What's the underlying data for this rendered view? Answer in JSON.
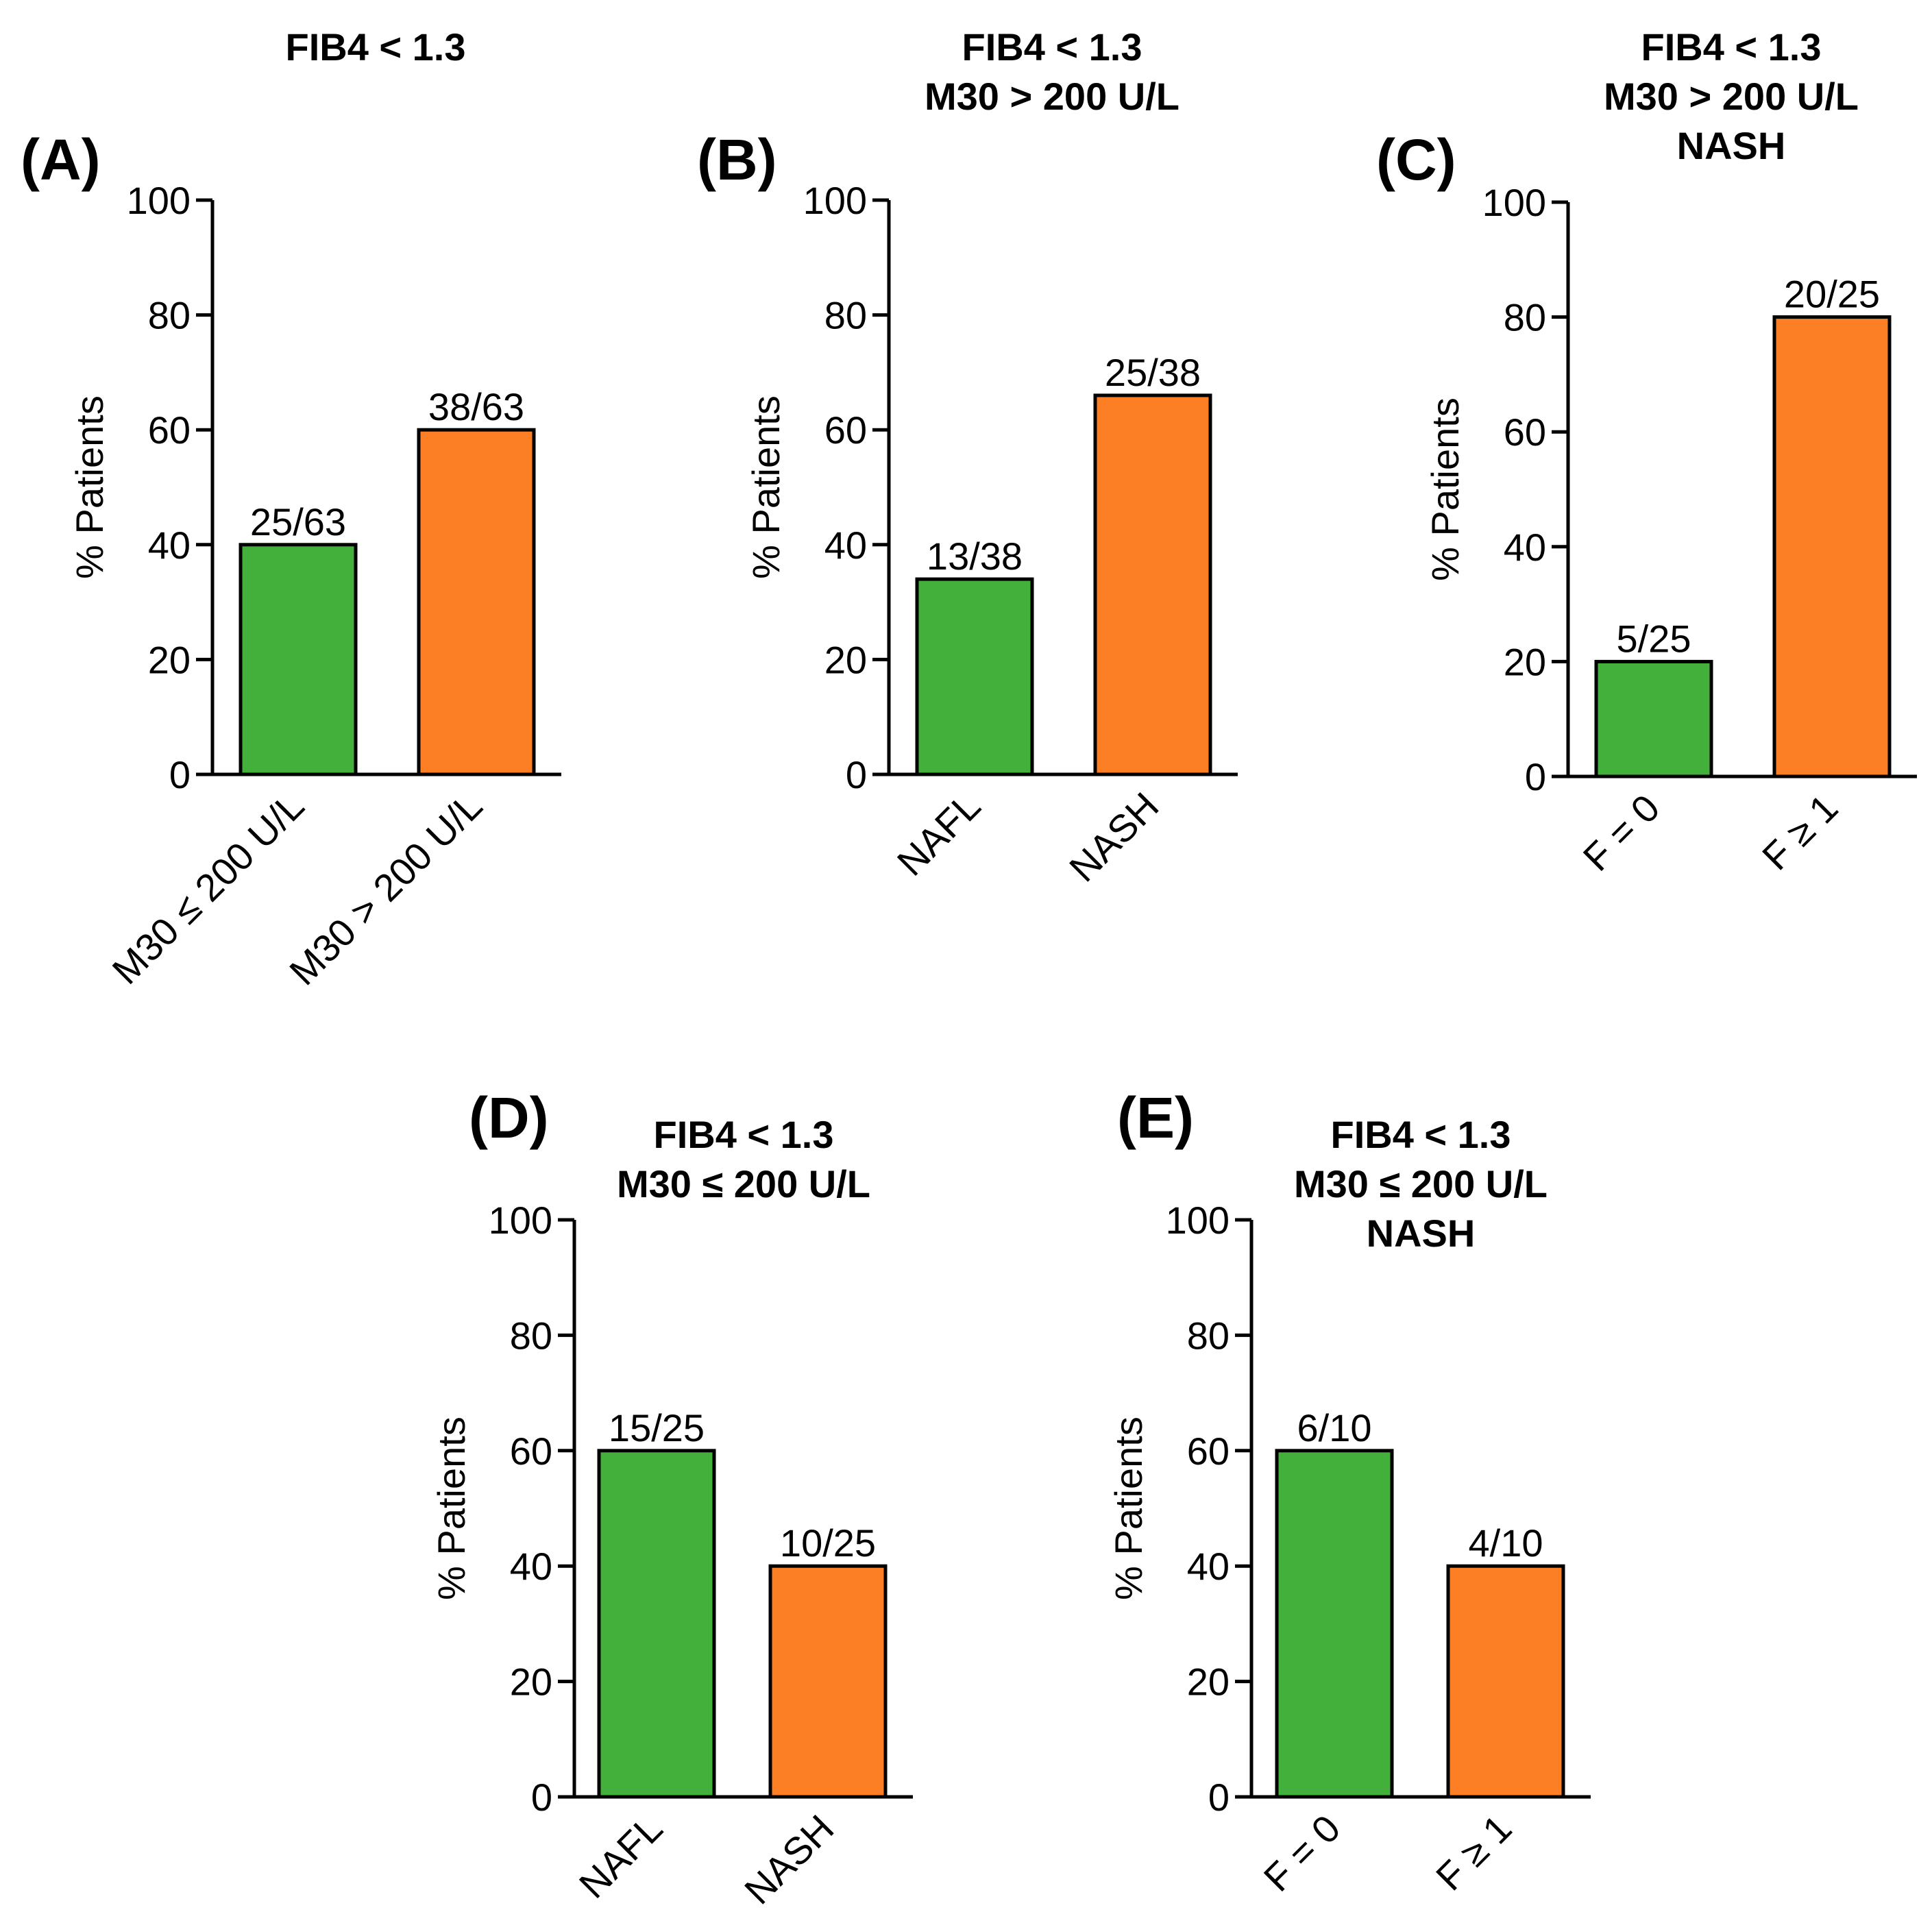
{
  "colors": {
    "green": "#44b03c",
    "orange": "#fd7f25"
  },
  "chart_data": [
    {
      "type": "bar",
      "panel": "(A)",
      "title": [
        "FIB4 < 1.3"
      ],
      "ylabel": "% Patients",
      "ylim": [
        0,
        100
      ],
      "yticks": [
        "0",
        "20",
        "40",
        "60",
        "80",
        "100"
      ],
      "categories": [
        "M30 ≤ 200 U/L",
        "M30 > 200 U/L"
      ],
      "values": [
        40,
        60
      ],
      "labels": [
        "25/63",
        "38/63"
      ],
      "colors": [
        "green",
        "orange"
      ]
    },
    {
      "type": "bar",
      "panel": "(B)",
      "title": [
        "FIB4 < 1.3",
        "M30 > 200 U/L"
      ],
      "ylabel": "% Patients",
      "ylim": [
        0,
        100
      ],
      "yticks": [
        "0",
        "20",
        "40",
        "60",
        "80",
        "100"
      ],
      "categories": [
        "NAFL",
        "NASH"
      ],
      "values": [
        34,
        66
      ],
      "labels": [
        "13/38",
        "25/38"
      ],
      "colors": [
        "green",
        "orange"
      ]
    },
    {
      "type": "bar",
      "panel": "(C)",
      "title": [
        "FIB4 < 1.3",
        "M30 > 200 U/L",
        "NASH"
      ],
      "ylabel": "% Patients",
      "ylim": [
        0,
        100
      ],
      "yticks": [
        "0",
        "20",
        "40",
        "60",
        "80",
        "100"
      ],
      "categories": [
        "F = 0",
        "F ≥ 1"
      ],
      "values": [
        20,
        80
      ],
      "labels": [
        "5/25",
        "20/25"
      ],
      "colors": [
        "green",
        "orange"
      ]
    },
    {
      "type": "bar",
      "panel": "(D)",
      "title": [
        "FIB4 < 1.3",
        "M30 ≤ 200 U/L"
      ],
      "ylabel": "% Patients",
      "ylim": [
        0,
        100
      ],
      "yticks": [
        "0",
        "20",
        "40",
        "60",
        "80",
        "100"
      ],
      "categories": [
        "NAFL",
        "NASH"
      ],
      "values": [
        60,
        40
      ],
      "labels": [
        "15/25",
        "10/25"
      ],
      "colors": [
        "green",
        "orange"
      ]
    },
    {
      "type": "bar",
      "panel": "(E)",
      "title": [
        "FIB4 < 1.3",
        "M30 ≤ 200 U/L",
        "NASH"
      ],
      "ylabel": "% Patients",
      "ylim": [
        0,
        100
      ],
      "yticks": [
        "0",
        "20",
        "40",
        "60",
        "80",
        "100"
      ],
      "categories": [
        "F = 0",
        "F ≥ 1"
      ],
      "values": [
        60,
        40
      ],
      "labels": [
        "6/10",
        "4/10"
      ],
      "colors": [
        "green",
        "orange"
      ]
    }
  ]
}
